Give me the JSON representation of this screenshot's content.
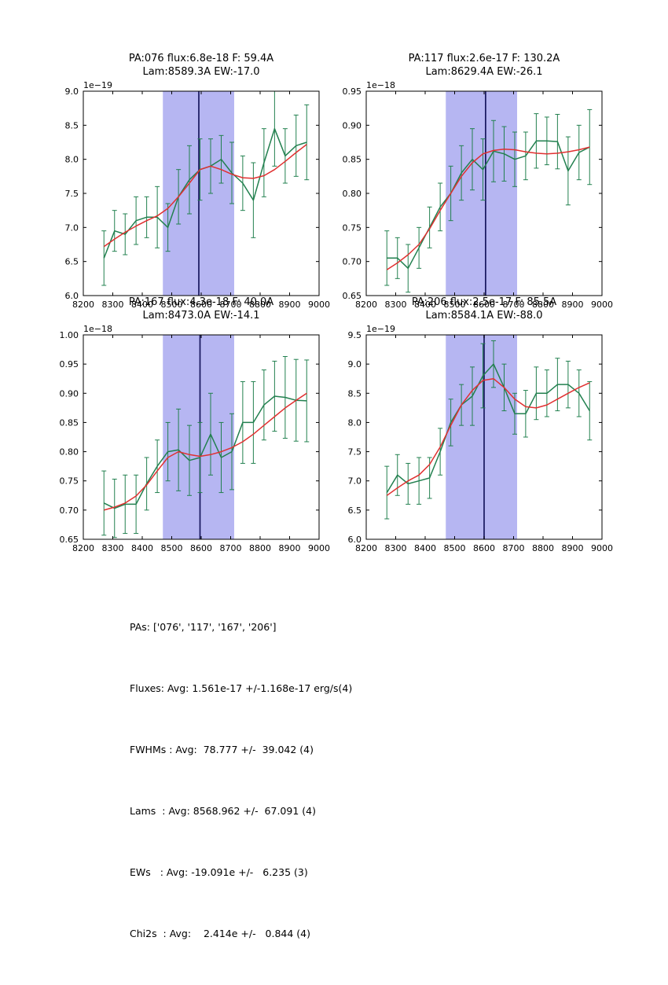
{
  "colors": {
    "background": "#ffffff",
    "band": "#b6b6f2",
    "vline": "#17175e",
    "data": "#22804f",
    "fit": "#e03030",
    "axis": "#000000"
  },
  "summary": {
    "lines": [
      "PAs: ['076', '117', '167', '206']",
      "Fluxes: Avg: 1.561e-17 +/-1.168e-17 erg/s(4)",
      "FWHMs : Avg:  78.777 +/-  39.042 (4)",
      "Lams  : Avg: 8568.962 +/-  67.091 (4)",
      "EWs   : Avg: -19.091e +/-   6.235 (3)",
      "Chi2s  : Avg:    2.414e +/-   0.844 (4)"
    ]
  },
  "chart_data": [
    {
      "type": "line",
      "title_line1": "PA:076 flux:6.8e-18 F: 59.4A",
      "title_line2": "Lam:8589.3A EW:-17.0",
      "offset_label": "1e−19",
      "xlim": [
        8200,
        9000
      ],
      "ylim": [
        6.0,
        9.0
      ],
      "xticks": [
        8200,
        8300,
        8400,
        8500,
        8600,
        8700,
        8800,
        8900,
        9000
      ],
      "yticks": [
        6.0,
        6.5,
        7.0,
        7.5,
        8.0,
        8.5,
        9.0
      ],
      "ytick_labels": [
        "6.0",
        "6.5",
        "7.0",
        "7.5",
        "8.0",
        "8.5",
        "9.0"
      ],
      "band": [
        8470,
        8712
      ],
      "vline": 8592,
      "x": [
        8270,
        8306,
        8342,
        8379,
        8415,
        8451,
        8487,
        8523,
        8560,
        8596,
        8632,
        8668,
        8704,
        8741,
        8777,
        8813,
        8849,
        8885,
        8922,
        8958
      ],
      "series": [
        {
          "name": "data",
          "values": [
            6.55,
            6.95,
            6.9,
            7.1,
            7.15,
            7.15,
            7.0,
            7.45,
            7.7,
            7.85,
            7.9,
            8.0,
            7.8,
            7.65,
            7.4,
            7.95,
            8.45,
            8.05,
            8.2,
            8.25
          ],
          "errors": [
            0.4,
            0.3,
            0.3,
            0.35,
            0.3,
            0.45,
            0.35,
            0.4,
            0.5,
            0.45,
            0.4,
            0.35,
            0.45,
            0.4,
            0.55,
            0.5,
            0.55,
            0.4,
            0.45,
            0.55
          ]
        },
        {
          "name": "fit",
          "values": [
            6.72,
            6.83,
            6.93,
            7.02,
            7.1,
            7.17,
            7.28,
            7.45,
            7.65,
            7.85,
            7.9,
            7.85,
            7.78,
            7.73,
            7.72,
            7.76,
            7.85,
            7.97,
            8.1,
            8.22
          ]
        }
      ]
    },
    {
      "type": "line",
      "title_line1": "PA:117 flux:2.6e-17 F: 130.2A",
      "title_line2": "Lam:8629.4A EW:-26.1",
      "offset_label": "1e−18",
      "xlim": [
        8200,
        9000
      ],
      "ylim": [
        0.65,
        0.95
      ],
      "xticks": [
        8200,
        8300,
        8400,
        8500,
        8600,
        8700,
        8800,
        8900,
        9000
      ],
      "yticks": [
        0.65,
        0.7,
        0.75,
        0.8,
        0.85,
        0.9,
        0.95
      ],
      "ytick_labels": [
        "0.65",
        "0.70",
        "0.75",
        "0.80",
        "0.85",
        "0.90",
        "0.95"
      ],
      "band": [
        8470,
        8712
      ],
      "vline": 8605,
      "x": [
        8270,
        8306,
        8342,
        8379,
        8415,
        8451,
        8487,
        8523,
        8560,
        8596,
        8632,
        8668,
        8704,
        8741,
        8777,
        8813,
        8849,
        8885,
        8922,
        8958
      ],
      "series": [
        {
          "name": "data",
          "values": [
            0.705,
            0.705,
            0.69,
            0.72,
            0.75,
            0.78,
            0.8,
            0.83,
            0.85,
            0.835,
            0.862,
            0.858,
            0.85,
            0.855,
            0.877,
            0.877,
            0.876,
            0.833,
            0.86,
            0.868
          ],
          "errors": [
            0.04,
            0.03,
            0.035,
            0.03,
            0.03,
            0.035,
            0.04,
            0.04,
            0.045,
            0.045,
            0.045,
            0.04,
            0.04,
            0.035,
            0.04,
            0.035,
            0.04,
            0.05,
            0.04,
            0.055
          ]
        },
        {
          "name": "fit",
          "values": [
            0.688,
            0.698,
            0.71,
            0.725,
            0.748,
            0.775,
            0.8,
            0.825,
            0.845,
            0.858,
            0.863,
            0.865,
            0.864,
            0.861,
            0.859,
            0.858,
            0.859,
            0.861,
            0.864,
            0.868
          ]
        }
      ]
    },
    {
      "type": "line",
      "title_line1": "PA:167 flux:4.3e-18 F: 40.0A",
      "title_line2": "Lam:8473.0A EW:-14.1",
      "offset_label": "1e−18",
      "xlim": [
        8200,
        9000
      ],
      "ylim": [
        0.65,
        1.0
      ],
      "xticks": [
        8200,
        8300,
        8400,
        8500,
        8600,
        8700,
        8800,
        8900,
        9000
      ],
      "yticks": [
        0.65,
        0.7,
        0.75,
        0.8,
        0.85,
        0.9,
        0.95,
        1.0
      ],
      "ytick_labels": [
        "0.65",
        "0.70",
        "0.75",
        "0.80",
        "0.85",
        "0.90",
        "0.95",
        "1.00"
      ],
      "band": [
        8470,
        8712
      ],
      "vline": 8596,
      "x": [
        8270,
        8306,
        8342,
        8379,
        8415,
        8451,
        8487,
        8523,
        8560,
        8596,
        8632,
        8668,
        8704,
        8741,
        8777,
        8813,
        8849,
        8885,
        8922,
        8958
      ],
      "series": [
        {
          "name": "data",
          "values": [
            0.712,
            0.703,
            0.71,
            0.71,
            0.745,
            0.775,
            0.8,
            0.803,
            0.785,
            0.79,
            0.83,
            0.79,
            0.8,
            0.85,
            0.85,
            0.88,
            0.895,
            0.893,
            0.888,
            0.887
          ],
          "errors": [
            0.055,
            0.05,
            0.05,
            0.05,
            0.045,
            0.045,
            0.05,
            0.07,
            0.06,
            0.06,
            0.07,
            0.06,
            0.065,
            0.07,
            0.07,
            0.06,
            0.06,
            0.07,
            0.07,
            0.07
          ]
        },
        {
          "name": "fit",
          "values": [
            0.7,
            0.705,
            0.712,
            0.724,
            0.743,
            0.767,
            0.79,
            0.8,
            0.795,
            0.792,
            0.795,
            0.8,
            0.807,
            0.817,
            0.83,
            0.845,
            0.86,
            0.875,
            0.888,
            0.9
          ]
        }
      ]
    },
    {
      "type": "line",
      "title_line1": "PA:206 flux:2.5e-17 F: 85.5A",
      "title_line2": "Lam:8584.1A EW:-88.0",
      "offset_label": "1e−19",
      "xlim": [
        8200,
        9000
      ],
      "ylim": [
        6.0,
        9.5
      ],
      "xticks": [
        8200,
        8300,
        8400,
        8500,
        8600,
        8700,
        8800,
        8900,
        9000
      ],
      "yticks": [
        6.0,
        6.5,
        7.0,
        7.5,
        8.0,
        8.5,
        9.0,
        9.5
      ],
      "ytick_labels": [
        "6.0",
        "6.5",
        "7.0",
        "7.5",
        "8.0",
        "8.5",
        "9.0",
        "9.5"
      ],
      "band": [
        8470,
        8712
      ],
      "vline": 8600,
      "x": [
        8270,
        8306,
        8342,
        8379,
        8415,
        8451,
        8487,
        8523,
        8560,
        8596,
        8632,
        8668,
        8704,
        8741,
        8777,
        8813,
        8849,
        8885,
        8922,
        8958
      ],
      "series": [
        {
          "name": "data",
          "values": [
            6.8,
            7.1,
            6.95,
            7.0,
            7.05,
            7.5,
            8.0,
            8.3,
            8.45,
            8.8,
            9.0,
            8.6,
            8.15,
            8.15,
            8.5,
            8.5,
            8.65,
            8.65,
            8.5,
            8.2
          ],
          "errors": [
            0.45,
            0.35,
            0.35,
            0.4,
            0.35,
            0.4,
            0.4,
            0.35,
            0.5,
            0.55,
            0.4,
            0.4,
            0.35,
            0.4,
            0.45,
            0.4,
            0.45,
            0.4,
            0.4,
            0.5
          ]
        },
        {
          "name": "fit",
          "values": [
            6.75,
            6.88,
            7.0,
            7.1,
            7.28,
            7.58,
            7.95,
            8.3,
            8.55,
            8.72,
            8.75,
            8.6,
            8.4,
            8.27,
            8.25,
            8.3,
            8.4,
            8.5,
            8.6,
            8.68
          ]
        }
      ]
    }
  ]
}
